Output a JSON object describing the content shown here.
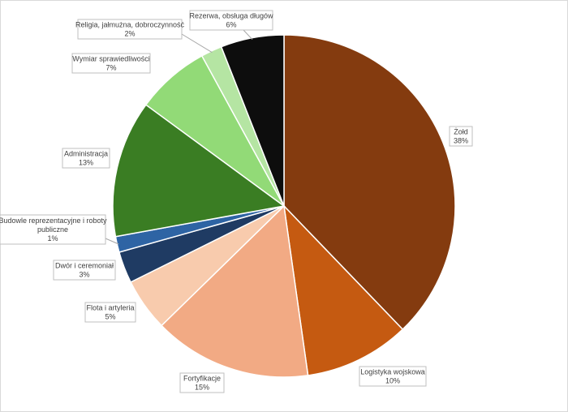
{
  "chart_data": {
    "type": "pie",
    "title": "",
    "start_angle_deg": 0,
    "direction": "clockwise",
    "slices": [
      {
        "label": "Żołd",
        "value": 38,
        "value_label": "38%",
        "color": "#843b0f"
      },
      {
        "label": "Logistyka wojskowa",
        "value": 10,
        "value_label": "10%",
        "color": "#c55a11"
      },
      {
        "label": "Fortyfikacje",
        "value": 15,
        "value_label": "15%",
        "color": "#f2aa84"
      },
      {
        "label": "Flota i artyleria",
        "value": 5,
        "value_label": "5%",
        "color": "#f8cbad"
      },
      {
        "label": "Dwór i ceremoniał",
        "value": 3,
        "value_label": "3%",
        "color": "#1f3b63"
      },
      {
        "label": "Budowle reprezentacyjne i roboty publiczne",
        "value": 1.5,
        "value_label": "1%",
        "color": "#2e64a4"
      },
      {
        "label": "Administracja",
        "value": 13,
        "value_label": "13%",
        "color": "#3a7d23"
      },
      {
        "label": "Wymiar sprawiedliwości",
        "value": 7,
        "value_label": "7%",
        "color": "#92da77"
      },
      {
        "label": "Religia, jałmużna, dobroczynność",
        "value": 2,
        "value_label": "2%",
        "color": "#b5e5a3"
      },
      {
        "label": "Rezerwa, obsługa długów",
        "value": 6,
        "value_label": "6%",
        "color": "#0d0d0d"
      }
    ]
  }
}
